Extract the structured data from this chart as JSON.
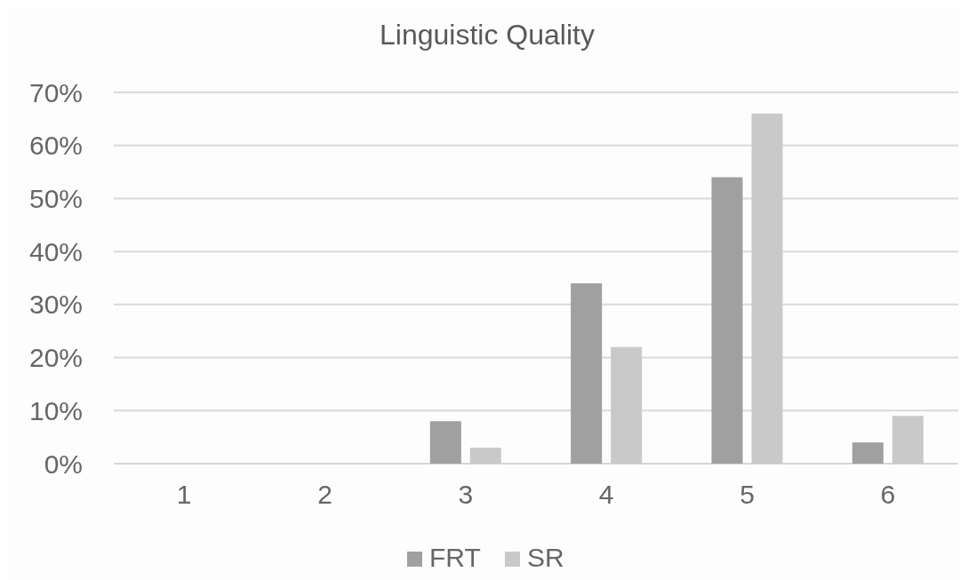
{
  "chart_data": {
    "type": "bar",
    "title": "Linguistic Quality",
    "categories": [
      "1",
      "2",
      "3",
      "4",
      "5",
      "6"
    ],
    "series": [
      {
        "name": "FRT",
        "color": "#a0a0a0",
        "values": [
          0,
          0,
          8,
          34,
          54,
          4
        ]
      },
      {
        "name": "SR",
        "color": "#c9c9c9",
        "values": [
          0,
          0,
          3,
          22,
          66,
          9
        ]
      }
    ],
    "ylim": [
      0,
      70
    ],
    "yticks": [
      {
        "value": 0,
        "label": "0%"
      },
      {
        "value": 10,
        "label": "10%"
      },
      {
        "value": 20,
        "label": "20%"
      },
      {
        "value": 30,
        "label": "30%"
      },
      {
        "value": 40,
        "label": "40%"
      },
      {
        "value": 50,
        "label": "50%"
      },
      {
        "value": 60,
        "label": "60%"
      },
      {
        "value": 70,
        "label": "70%"
      }
    ],
    "grid": "y",
    "legend": "bottom"
  }
}
